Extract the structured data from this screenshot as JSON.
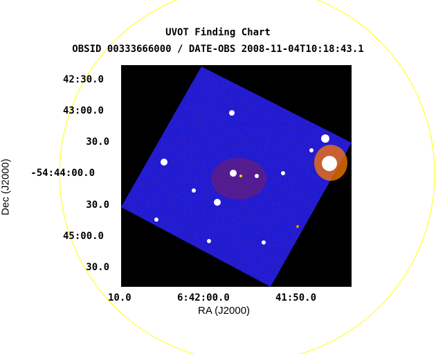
{
  "chart": {
    "title": "UVOT Finding Chart",
    "subtitle": "OBSID 00333666000 / DATE-OBS 2008-11-04T10:18:43.1",
    "ylabel": "Dec (J2000)",
    "xlabel": "RA (J2000)",
    "dec_ticks": [
      "42:30.0",
      "43:00.0",
      "30.0",
      "-54:44:00.0",
      "30.0",
      "45:00.0",
      "30.0"
    ],
    "ra_ticks": [
      "10.0",
      "6:42:00.0",
      "41:50.0"
    ]
  },
  "colors": {
    "background": "#000000",
    "field": "#1d1ad8",
    "circle": "#ffff2a",
    "source": "#ffffff"
  }
}
